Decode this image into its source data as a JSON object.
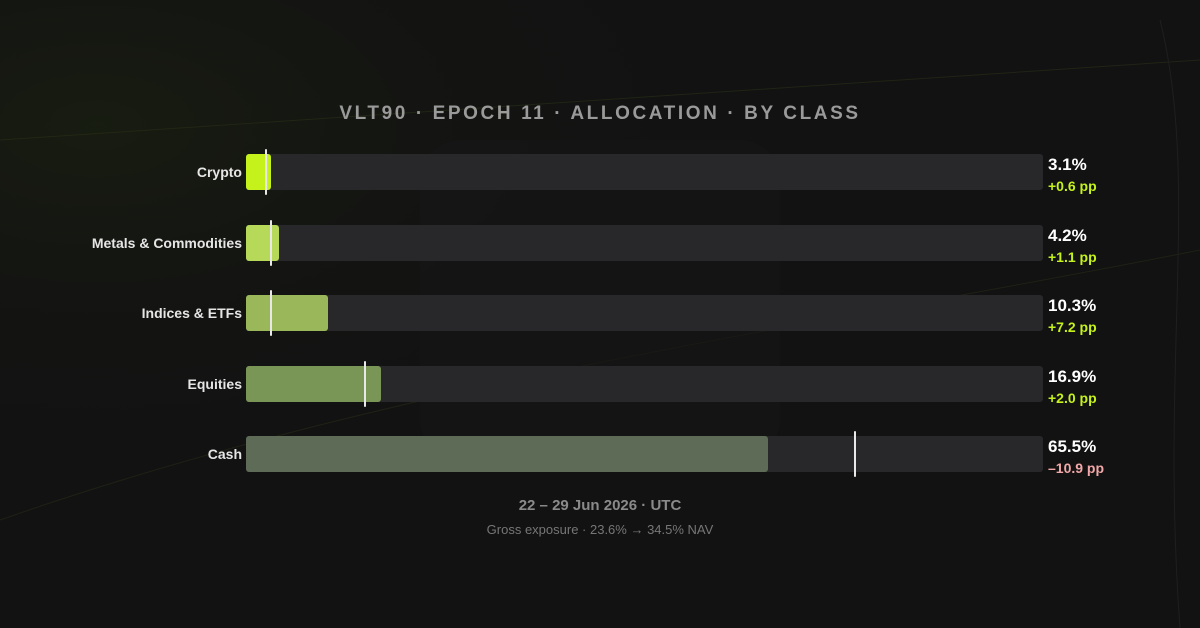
{
  "colors": {
    "background": "#121212",
    "track": "#28282b",
    "positive": "#c4f21a",
    "negative": "#f2a8a8",
    "marker": "#e8e8e8"
  },
  "header": {
    "title": "VLT90 · EPOCH 11 · ALLOCATION · BY CLASS"
  },
  "chart_data": {
    "type": "bar",
    "orientation": "horizontal",
    "title": "VLT90 · EPOCH 11 · ALLOCATION · BY CLASS",
    "xlim": [
      0,
      100
    ],
    "unit": "%",
    "categories": [
      "Crypto",
      "Metals & Commodities",
      "Indices & ETFs",
      "Equities",
      "Cash"
    ],
    "series": [
      {
        "values": [
          3.1,
          4.2,
          10.3,
          16.9,
          65.5
        ]
      }
    ],
    "previous_values": [
      2.5,
      3.1,
      3.1,
      14.9,
      76.4
    ],
    "value_labels": [
      "3.1%",
      "4.2%",
      "10.3%",
      "16.9%",
      "65.5%"
    ],
    "delta_labels": [
      "+0.6 pp",
      "+1.1 pp",
      "+7.2 pp",
      "+2.0 pp",
      "–10.9 pp"
    ],
    "delta_signs": [
      "positive",
      "positive",
      "positive",
      "positive",
      "negative"
    ],
    "bar_colors": [
      "#c4f21a",
      "#b6d95a",
      "#9ab85a",
      "#7a9656",
      "#5e6b57"
    ]
  },
  "footer": {
    "date": "22 – 29 Jun 2026 · UTC",
    "subtitle": "Gross exposure · 23.6% → 34.5% NAV"
  }
}
